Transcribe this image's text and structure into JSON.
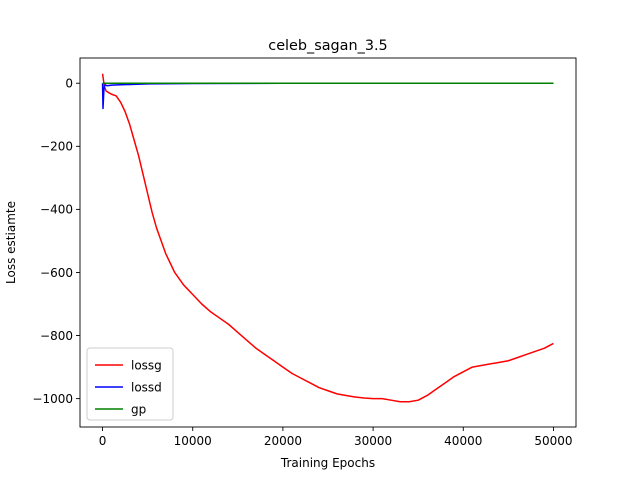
{
  "chart_data": {
    "type": "line",
    "title": "celeb_sagan_3.5",
    "xlabel": "Training Epochs",
    "ylabel": "Loss estiamte",
    "xlim": [
      -2500,
      52500
    ],
    "ylim": [
      -1090,
      80
    ],
    "xticks": [
      0,
      10000,
      20000,
      30000,
      40000,
      50000
    ],
    "xtick_labels": [
      "0",
      "10000",
      "20000",
      "30000",
      "40000",
      "50000"
    ],
    "yticks": [
      0,
      -200,
      -400,
      -600,
      -800,
      -1000
    ],
    "ytick_labels": [
      "0",
      "−200",
      "−400",
      "−600",
      "−800",
      "−1000"
    ],
    "grid": false,
    "legend_position": "lower-left",
    "series": [
      {
        "name": "lossg",
        "color": "#ff0000",
        "x": [
          0,
          100,
          200,
          400,
          700,
          1000,
          1500,
          2000,
          2500,
          3000,
          3500,
          4000,
          4500,
          5000,
          5500,
          6000,
          6500,
          7000,
          7500,
          8000,
          9000,
          10000,
          11000,
          12000,
          13000,
          14000,
          15000,
          16000,
          17000,
          18000,
          19000,
          20000,
          21000,
          22000,
          23000,
          24000,
          25000,
          26000,
          27000,
          28000,
          29000,
          30000,
          31000,
          32000,
          33000,
          34000,
          35000,
          36000,
          37000,
          38000,
          39000,
          40000,
          41000,
          42000,
          43000,
          44000,
          45000,
          46000,
          47000,
          48000,
          49000,
          50000
        ],
        "values": [
          30,
          10,
          -10,
          -25,
          -30,
          -35,
          -40,
          -60,
          -90,
          -130,
          -180,
          -230,
          -290,
          -350,
          -410,
          -460,
          -500,
          -540,
          -570,
          -600,
          -640,
          -670,
          -700,
          -725,
          -745,
          -765,
          -790,
          -815,
          -840,
          -860,
          -880,
          -900,
          -920,
          -935,
          -950,
          -965,
          -975,
          -985,
          -990,
          -995,
          -998,
          -1000,
          -1000,
          -1005,
          -1010,
          -1010,
          -1005,
          -990,
          -970,
          -950,
          -930,
          -915,
          -900,
          -895,
          -890,
          -885,
          -880,
          -870,
          -860,
          -850,
          -840,
          -825
        ]
      },
      {
        "name": "lossd",
        "color": "#0000ff",
        "x": [
          0,
          50,
          100,
          150,
          200,
          300,
          500,
          1000,
          2000,
          3000,
          5000,
          10000,
          20000,
          30000,
          40000,
          50000
        ],
        "values": [
          0,
          -80,
          -50,
          -20,
          -10,
          -5,
          -8,
          -6,
          -5,
          -4,
          -2,
          -1,
          0,
          0,
          0,
          0
        ]
      },
      {
        "name": "gp",
        "color": "#008000",
        "x": [
          0,
          200,
          1000,
          5000,
          10000,
          20000,
          30000,
          40000,
          50000
        ],
        "values": [
          0,
          0,
          0,
          0,
          0,
          0,
          0,
          0,
          0
        ]
      }
    ]
  }
}
